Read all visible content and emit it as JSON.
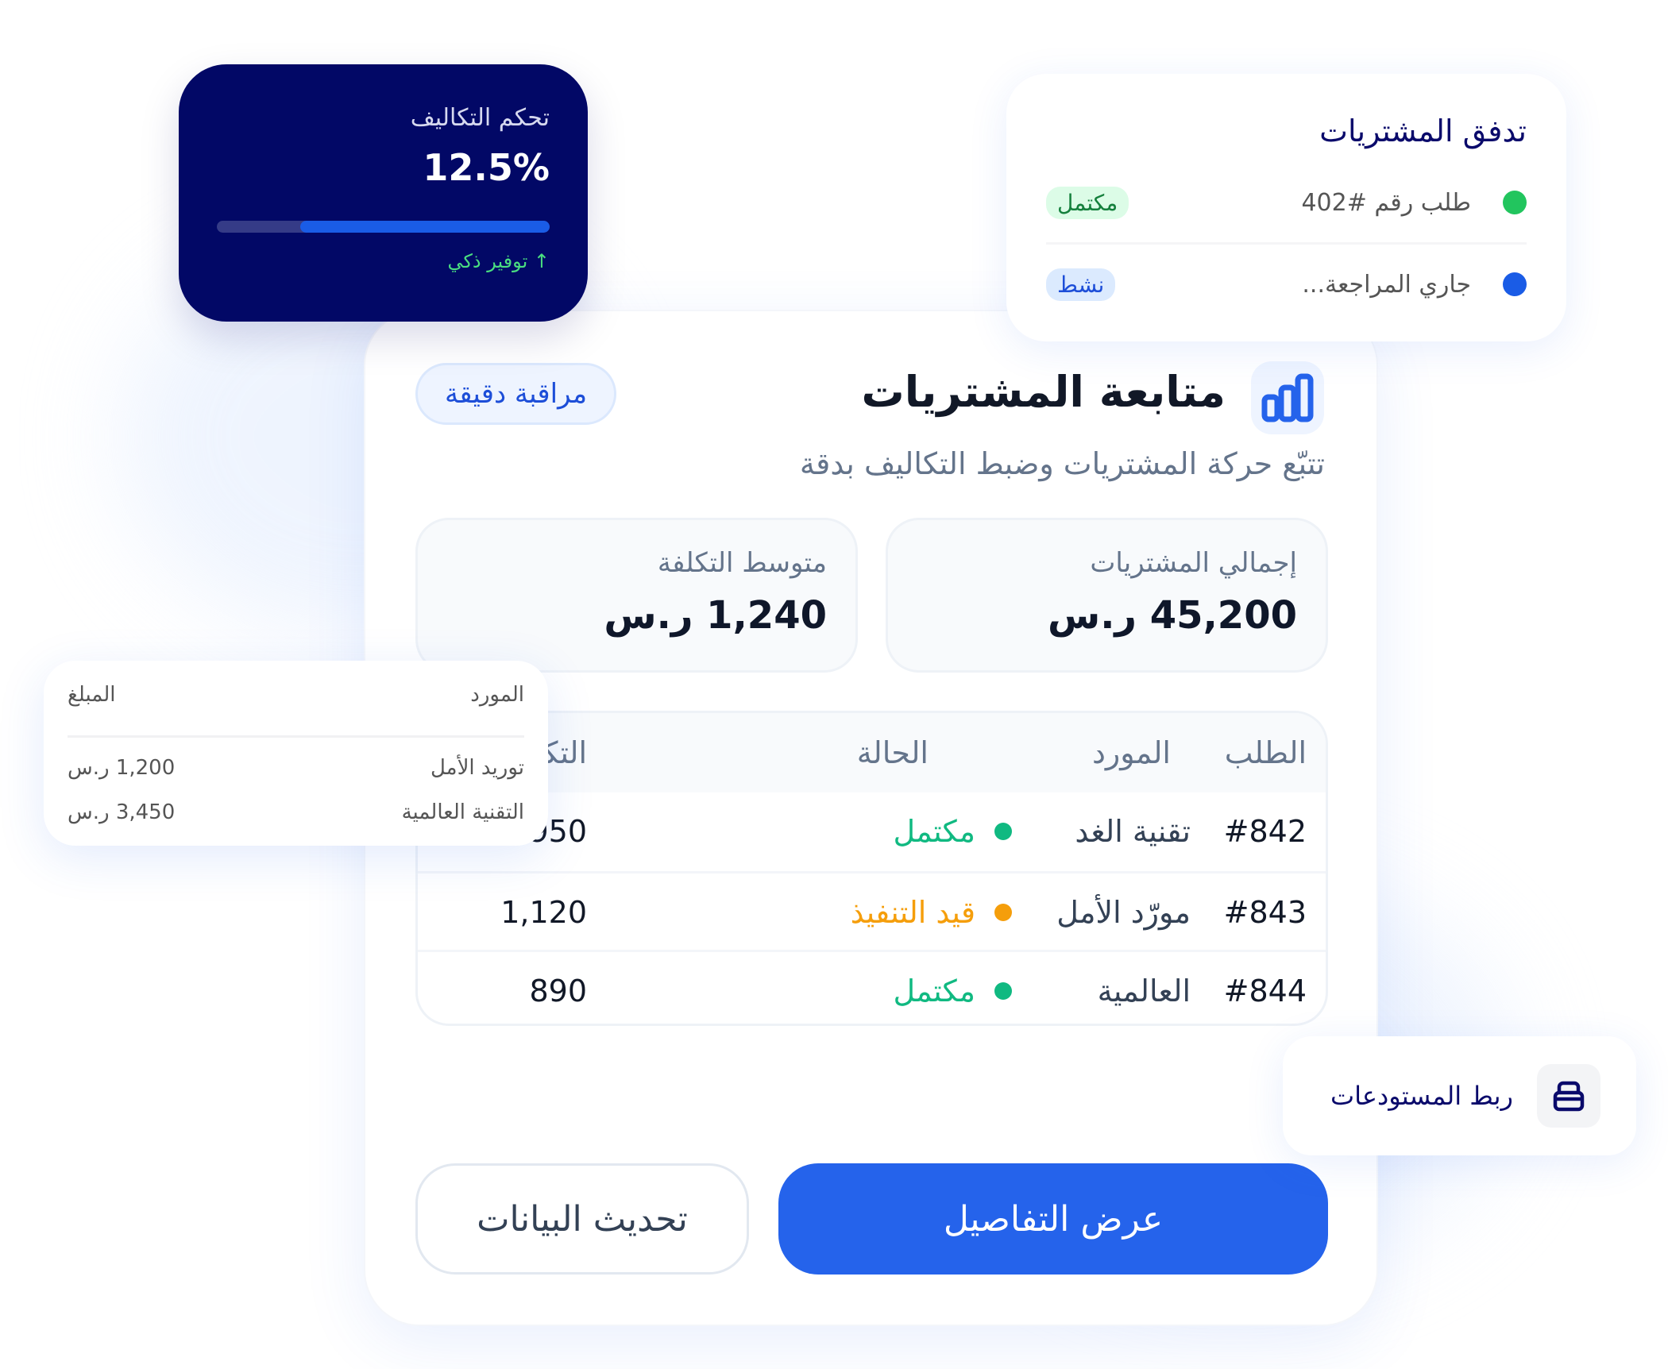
{
  "cost_card": {
    "title": "تحكم التكاليف",
    "value": "12.5%",
    "progress_percent": 75,
    "note": "↑ توفير ذكي",
    "colors": {
      "bg": "#020866",
      "fill": "#1a5ce6",
      "note": "#4ade80"
    }
  },
  "flow_card": {
    "title": "تدفق المشتريات",
    "items": [
      {
        "text": "طلب رقم #402",
        "dot_color": "#22c55e",
        "badge": "مكتمل",
        "badge_bg": "#dcfce7",
        "badge_color": "#15803d"
      },
      {
        "text": "جاري المراجعة...",
        "dot_color": "#1a5ce6",
        "badge": "نشط",
        "badge_bg": "#dbeafe",
        "badge_color": "#1d4ed8"
      }
    ]
  },
  "main": {
    "icon": "bar-chart-icon",
    "title": "متابعة المشتريات",
    "badge": "مراقبة دقيقة",
    "subtitle": "تتبّع حركة المشتريات وضبط التكاليف بدقة",
    "stats": [
      {
        "label": "إجمالي المشتريات",
        "value": "45,200 ر.س"
      },
      {
        "label": "متوسط التكلفة",
        "value": "1,240 ر.س"
      }
    ],
    "table": {
      "headers": [
        "الطلب",
        "المورد",
        "الحالة",
        "التكلفة"
      ],
      "rows": [
        {
          "order": "#842",
          "supplier": "تقنية الغد",
          "status": "مكتمل",
          "status_color": "#10b981",
          "cost": "950"
        },
        {
          "order": "#843",
          "supplier": "مورّد الأمل",
          "status": "قيد التنفيذ",
          "status_color": "#f59e0b",
          "cost": "1,120"
        },
        {
          "order": "#844",
          "supplier": "العالمية",
          "status": "مكتمل",
          "status_color": "#10b981",
          "cost": "890"
        }
      ]
    },
    "primary_button": "عرض التفاصيل",
    "secondary_button": "تحديث البيانات",
    "accent": "#2563eb"
  },
  "popup": {
    "headers": [
      "المورد",
      "المبلغ"
    ],
    "rows": [
      {
        "supplier": "توريد الأمل",
        "amount": "1,200 ر.س"
      },
      {
        "supplier": "التقنية العالمية",
        "amount": "3,450 ر.س"
      }
    ]
  },
  "warehouse": {
    "icon": "storage-box-icon",
    "label": "ربط المستودعات"
  }
}
